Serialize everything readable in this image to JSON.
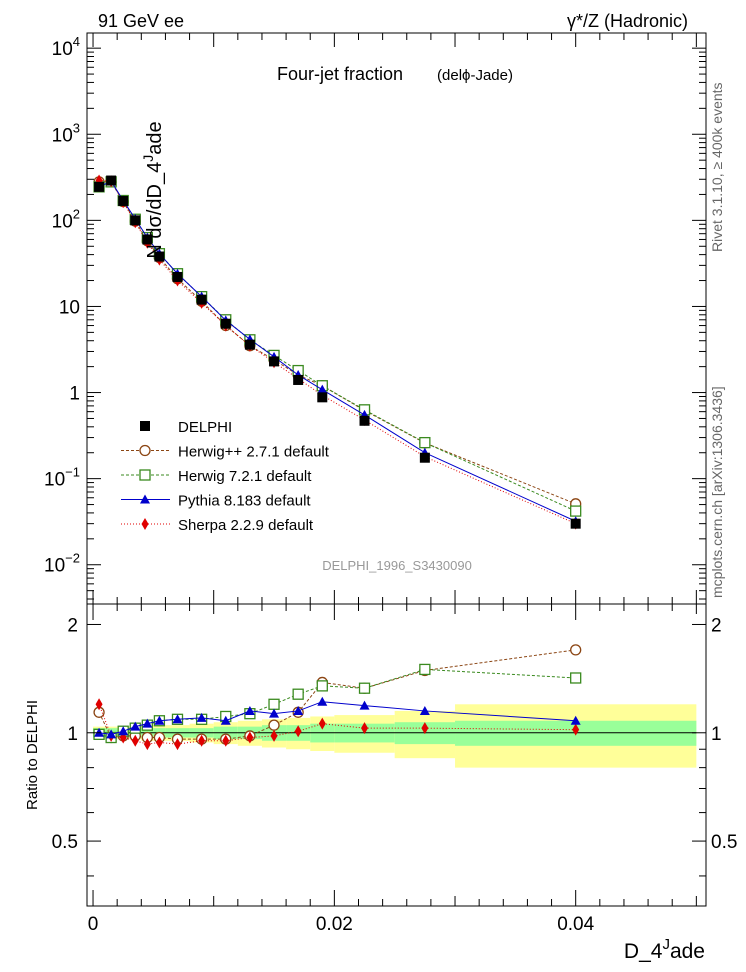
{
  "header": {
    "left": "91 GeV ee",
    "right": "γ*/Z (Hadronic)"
  },
  "side_label_top": "Rivet 3.1.10, ≥ 400k events",
  "side_label_bottom": "mcplots.cern.ch [arXiv:1306.3436]",
  "colors": {
    "data": "#000000",
    "herwigpp": "#8b4513",
    "herwig7": "#3a8a1f",
    "pythia": "#0000cc",
    "sherpa": "#e00000",
    "band_inner": "#99ff99",
    "band_outer": "#ffff99"
  },
  "chart_data": [
    {
      "type": "line",
      "panel": "main",
      "title": "Four-jet fraction",
      "title_suffix": "(delϕ-Jade)",
      "watermark": "DELPHI_1996_S3430090",
      "ylabel": "N dσ/dD_4^Jade",
      "yscale": "log",
      "ylim": [
        0.0035,
        15000
      ],
      "xlim": [
        -0.0005,
        0.0508
      ],
      "y_tick_labels": [
        "10^-2",
        "10^-1",
        "1",
        "10",
        "10^2",
        "10^3",
        "10^4"
      ],
      "legend_position": "bottom-left",
      "x": [
        0.0005,
        0.0015,
        0.0025,
        0.0035,
        0.0045,
        0.0055,
        0.007,
        0.009,
        0.011,
        0.013,
        0.015,
        0.017,
        0.019,
        0.0225,
        0.0275,
        0.04
      ],
      "series": [
        {
          "name": "DELPHI",
          "marker": "square-filled",
          "values": [
            245,
            290,
            168,
            100,
            60,
            38,
            22,
            12,
            6.3,
            3.6,
            2.3,
            1.4,
            0.88,
            0.47,
            0.175,
            0.03
          ]
        },
        {
          "name": "Herwig++ 2.7.1 default",
          "marker": "circle-open",
          "values": [
            280,
            280,
            165,
            98,
            58,
            37,
            21,
            11.5,
            6.0,
            3.5,
            2.4,
            1.6,
            1.2,
            0.62,
            0.26,
            0.051
          ]
        },
        {
          "name": "Herwig 7.2.1 default",
          "marker": "square-open",
          "values": [
            245,
            280,
            170,
            103,
            63,
            41,
            24,
            13,
            7.0,
            4.1,
            2.7,
            1.8,
            1.2,
            0.63,
            0.262,
            0.042
          ]
        },
        {
          "name": "Pythia 8.183 default",
          "marker": "triangle-filled",
          "values": [
            245,
            285,
            170,
            104,
            63,
            41,
            24,
            13,
            6.9,
            4.15,
            2.6,
            1.6,
            1.08,
            0.55,
            0.2,
            0.032
          ]
        },
        {
          "name": "Sherpa 2.2.9 default",
          "marker": "diamond-filled",
          "values": [
            290,
            285,
            163,
            95,
            55,
            35,
            20,
            11,
            6.0,
            3.5,
            2.25,
            1.45,
            0.93,
            0.48,
            0.18,
            0.03
          ]
        }
      ]
    },
    {
      "type": "line",
      "panel": "ratio",
      "ylabel": "Ratio to DELPHI",
      "ylim": [
        0.33,
        2.28
      ],
      "xlim": [
        -0.0005,
        0.0508
      ],
      "xlabel": "D_4^Jade",
      "x_tick_labels": [
        "0",
        "0.02",
        "0.04"
      ],
      "y_tick_labels": [
        "0.5",
        "1",
        "2"
      ],
      "y_tick_values": [
        0.5,
        1,
        2
      ],
      "x_tick_values": [
        0,
        0.02,
        0.04
      ],
      "bands": {
        "edges": [
          0,
          0.001,
          0.002,
          0.003,
          0.004,
          0.005,
          0.006,
          0.008,
          0.01,
          0.012,
          0.014,
          0.016,
          0.018,
          0.02,
          0.025,
          0.03,
          0.05
        ],
        "inner": [
          0.03,
          0.03,
          0.03,
          0.03,
          0.03,
          0.03,
          0.03,
          0.03,
          0.04,
          0.04,
          0.05,
          0.05,
          0.06,
          0.06,
          0.07,
          0.08
        ],
        "outer": [
          0.04,
          0.04,
          0.04,
          0.04,
          0.05,
          0.05,
          0.05,
          0.06,
          0.07,
          0.08,
          0.09,
          0.1,
          0.11,
          0.12,
          0.15,
          0.2
        ]
      },
      "x": [
        0.0005,
        0.0015,
        0.0025,
        0.0035,
        0.0045,
        0.0055,
        0.007,
        0.009,
        0.011,
        0.013,
        0.015,
        0.017,
        0.019,
        0.0225,
        0.0275,
        0.04
      ],
      "series": [
        {
          "name": "Herwig++ 2.7.1 default",
          "marker": "circle-open",
          "values": [
            1.14,
            0.97,
            0.98,
            0.98,
            0.97,
            0.97,
            0.96,
            0.96,
            0.96,
            0.98,
            1.05,
            1.14,
            1.38,
            1.33,
            1.49,
            1.7
          ]
        },
        {
          "name": "Herwig 7.2.1 default",
          "marker": "square-open",
          "values": [
            0.99,
            0.97,
            1.01,
            1.03,
            1.05,
            1.08,
            1.09,
            1.09,
            1.11,
            1.13,
            1.2,
            1.28,
            1.35,
            1.33,
            1.5,
            1.42
          ]
        },
        {
          "name": "Pythia 8.183 default",
          "marker": "triangle-filled",
          "values": [
            1.0,
            0.99,
            1.01,
            1.04,
            1.06,
            1.08,
            1.09,
            1.1,
            1.08,
            1.15,
            1.13,
            1.15,
            1.22,
            1.19,
            1.15,
            1.08
          ]
        },
        {
          "name": "Sherpa 2.2.9 default",
          "marker": "diamond-filled",
          "values": [
            1.2,
            0.98,
            0.97,
            0.95,
            0.93,
            0.94,
            0.93,
            0.95,
            0.95,
            0.97,
            0.98,
            1.01,
            1.06,
            1.03,
            1.03,
            1.02
          ]
        }
      ]
    }
  ]
}
